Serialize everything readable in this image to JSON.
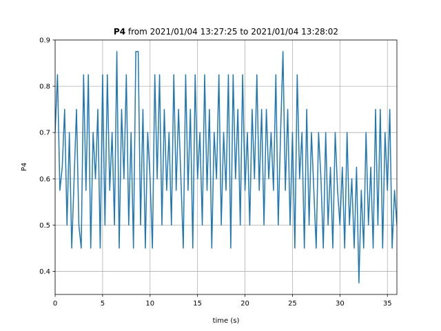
{
  "chart_data": {
    "type": "line",
    "title_name": "P4",
    "title": "from 2021/01/04 13:27:25 to 2021/01/04 13:28:02",
    "xlabel": "time (s)",
    "ylabel": "P4",
    "xlim": [
      0,
      36
    ],
    "ylim": [
      0.35,
      0.9
    ],
    "xticks": [
      0,
      5,
      10,
      15,
      20,
      25,
      30,
      35
    ],
    "yticks": [
      0.4,
      0.5,
      0.6,
      0.7,
      0.8,
      0.9
    ],
    "grid": true,
    "x": [
      0,
      0.25,
      0.5,
      0.75,
      1,
      1.25,
      1.5,
      1.75,
      2,
      2.25,
      2.5,
      2.75,
      3,
      3.25,
      3.5,
      3.75,
      4,
      4.25,
      4.5,
      4.75,
      5,
      5.25,
      5.5,
      5.75,
      6,
      6.25,
      6.5,
      6.75,
      7,
      7.25,
      7.5,
      7.75,
      8,
      8.25,
      8.5,
      8.75,
      9,
      9.25,
      9.5,
      9.75,
      10,
      10.25,
      10.5,
      10.75,
      11,
      11.25,
      11.5,
      11.75,
      12,
      12.25,
      12.5,
      12.75,
      13,
      13.25,
      13.5,
      13.75,
      14,
      14.25,
      14.5,
      14.75,
      15,
      15.25,
      15.5,
      15.75,
      16,
      16.25,
      16.5,
      16.75,
      17,
      17.25,
      17.5,
      17.75,
      18,
      18.25,
      18.5,
      18.75,
      19,
      19.25,
      19.5,
      19.75,
      20,
      20.25,
      20.5,
      20.75,
      21,
      21.25,
      21.5,
      21.75,
      22,
      22.25,
      22.5,
      22.75,
      23,
      23.25,
      23.5,
      23.75,
      24,
      24.25,
      24.5,
      24.75,
      25,
      25.25,
      25.5,
      25.75,
      26,
      26.25,
      26.5,
      26.75,
      27,
      27.25,
      27.5,
      27.75,
      28,
      28.25,
      28.5,
      28.75,
      29,
      29.25,
      29.5,
      29.75,
      30,
      30.25,
      30.5,
      30.75,
      31,
      31.25,
      31.5,
      31.75,
      32,
      32.25,
      32.5,
      32.75,
      33,
      33.25,
      33.5,
      33.75,
      34,
      34.25,
      34.5,
      34.75,
      35,
      35.25,
      35.5,
      35.75,
      36
    ],
    "series": [
      {
        "color": "#1f77b4",
        "values": [
          0.7,
          0.825,
          0.575,
          0.625,
          0.75,
          0.5,
          0.7,
          0.45,
          0.6,
          0.75,
          0.5,
          0.45,
          0.825,
          0.575,
          0.825,
          0.45,
          0.7,
          0.6,
          0.75,
          0.45,
          0.825,
          0.5,
          0.825,
          0.575,
          0.7,
          0.5,
          0.875,
          0.45,
          0.75,
          0.6,
          0.825,
          0.5,
          0.7,
          0.45,
          0.875,
          0.875,
          0.5,
          0.75,
          0.45,
          0.7,
          0.6,
          0.45,
          0.825,
          0.6,
          0.825,
          0.5,
          0.75,
          0.575,
          0.7,
          0.5,
          0.825,
          0.575,
          0.75,
          0.6,
          0.45,
          0.825,
          0.575,
          0.75,
          0.45,
          0.825,
          0.6,
          0.7,
          0.5,
          0.825,
          0.575,
          0.75,
          0.45,
          0.7,
          0.6,
          0.825,
          0.5,
          0.7,
          0.575,
          0.825,
          0.45,
          0.825,
          0.6,
          0.75,
          0.5,
          0.825,
          0.575,
          0.7,
          0.5,
          0.75,
          0.6,
          0.825,
          0.575,
          0.75,
          0.5,
          0.75,
          0.6,
          0.7,
          0.575,
          0.825,
          0.5,
          0.7,
          0.875,
          0.575,
          0.75,
          0.5,
          0.7,
          0.45,
          0.825,
          0.6,
          0.7,
          0.45,
          0.75,
          0.5,
          0.7,
          0.575,
          0.45,
          0.7,
          0.6,
          0.45,
          0.7,
          0.5,
          0.625,
          0.45,
          0.7,
          0.575,
          0.5,
          0.625,
          0.45,
          0.7,
          0.5,
          0.6,
          0.45,
          0.625,
          0.375,
          0.575,
          0.45,
          0.7,
          0.5,
          0.625,
          0.45,
          0.75,
          0.5,
          0.75,
          0.45,
          0.7,
          0.575,
          0.75,
          0.45,
          0.575,
          0.5
        ]
      }
    ]
  }
}
